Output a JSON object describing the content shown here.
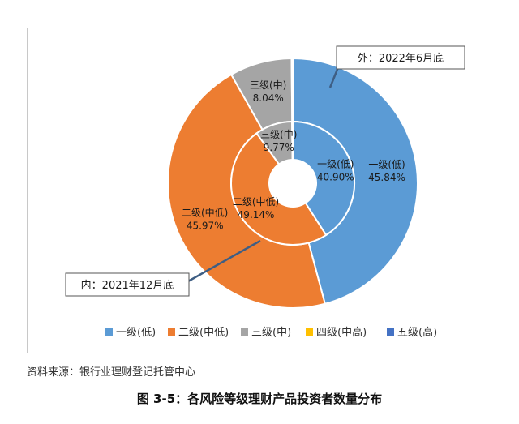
{
  "chart_data": {
    "type": "doughnut",
    "categories": [
      "一级(低)",
      "二级(中低)",
      "三级(中)",
      "四级(中高)",
      "五级(高)"
    ],
    "colors": [
      "#5b9bd5",
      "#ed7d31",
      "#a5a5a5",
      "#ffc000",
      "#4472c4"
    ],
    "series": [
      {
        "name": "外：2022年6月底",
        "ring": "outer",
        "values": [
          45.84,
          45.97,
          8.04,
          0.15,
          0.0
        ],
        "labels": [
          "一级(低)\n45.84%",
          "二级(中低)\n45.97%",
          "三级(中)\n8.04%",
          "",
          ""
        ]
      },
      {
        "name": "内：2021年12月底",
        "ring": "inner",
        "values": [
          40.9,
          49.14,
          9.77,
          0.19,
          0.0
        ],
        "labels": [
          "一级(低)\n40.90%",
          "二级(中低)\n49.14%",
          "三级(中)\n9.77%",
          "",
          ""
        ]
      }
    ],
    "legend_position": "bottom"
  },
  "source_text": "资料来源：银行业理财登记托管中心",
  "caption": "图 3-5：各风险等级理财产品投资者数量分布"
}
